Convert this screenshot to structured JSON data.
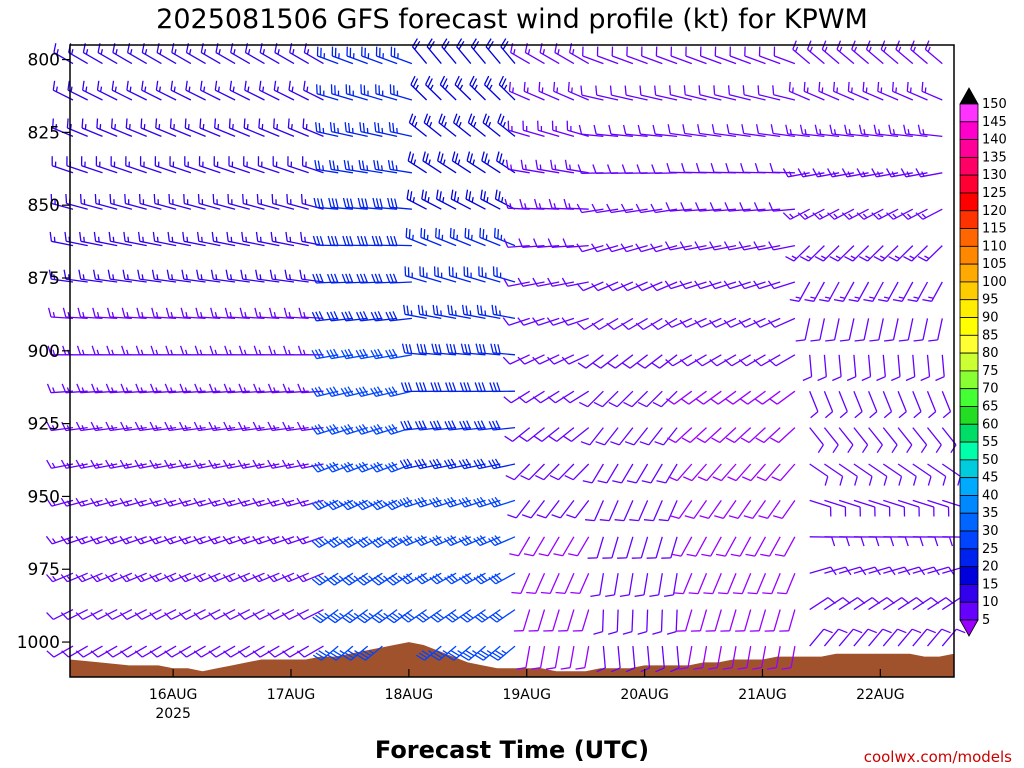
{
  "chart_data": {
    "type": "wind-barb time-height",
    "title": "2025081506 GFS forecast wind profile (kt) for KPWM",
    "xlabel": "Forecast Time (UTC)",
    "ylabel": "",
    "credit": "coolwx.com/models",
    "y_axis": {
      "units": "hPa",
      "range": [
        1012,
        795
      ],
      "ticks": [
        800,
        825,
        850,
        875,
        900,
        925,
        950,
        975,
        1000
      ]
    },
    "x_axis": {
      "range_hours": [
        -21,
        159
      ],
      "ticks": [
        {
          "label": "16AUG",
          "sublabel": "2025",
          "hour": 0
        },
        {
          "label": "17AUG",
          "hour": 24
        },
        {
          "label": "18AUG",
          "hour": 48
        },
        {
          "label": "19AUG",
          "hour": 72
        },
        {
          "label": "20AUG",
          "hour": 96
        },
        {
          "label": "21AUG",
          "hour": 120
        },
        {
          "label": "22AUG",
          "hour": 144
        }
      ]
    },
    "colorbar": {
      "label_values": [
        150,
        145,
        140,
        135,
        130,
        125,
        120,
        115,
        110,
        105,
        100,
        95,
        90,
        85,
        80,
        75,
        70,
        65,
        60,
        55,
        50,
        45,
        40,
        35,
        30,
        25,
        20,
        15,
        10,
        5
      ],
      "colors": [
        "#000000",
        "#ff33ff",
        "#ff00cc",
        "#ff0099",
        "#ff0066",
        "#ff0033",
        "#ff0000",
        "#ff3300",
        "#ff6600",
        "#ff8800",
        "#ffaa00",
        "#ffcc00",
        "#ffee00",
        "#ffff00",
        "#ffff33",
        "#ccff33",
        "#88ff33",
        "#44ff33",
        "#22dd22",
        "#00dd66",
        "#00ffaa",
        "#00ccdd",
        "#00aaff",
        "#0088ff",
        "#0066ff",
        "#0044ff",
        "#0022ee",
        "#0000dd",
        "#3300ee",
        "#6600ff",
        "#9900ff"
      ]
    },
    "surface_pressure": {
      "hours": [
        -21,
        -15,
        -9,
        -3,
        0,
        3,
        6,
        9,
        12,
        15,
        18,
        21,
        24,
        27,
        30,
        33,
        36,
        39,
        42,
        45,
        48,
        51,
        54,
        57,
        60,
        63,
        66,
        69,
        72,
        75,
        78,
        81,
        84,
        87,
        90,
        93,
        96,
        99,
        102,
        105,
        108,
        111,
        114,
        117,
        120,
        123,
        126,
        129,
        132,
        135,
        138,
        141,
        144,
        147,
        150,
        153,
        156,
        159
      ],
      "values": [
        1006,
        1007,
        1008,
        1008,
        1009,
        1009,
        1010,
        1009,
        1008,
        1007,
        1006,
        1006,
        1006,
        1006,
        1005,
        1005,
        1004,
        1003,
        1002,
        1001,
        1000,
        1001,
        1003,
        1005,
        1007,
        1008,
        1009,
        1009,
        1009,
        1009,
        1010,
        1010,
        1010,
        1009,
        1009,
        1009,
        1008,
        1008,
        1008,
        1008,
        1007,
        1007,
        1006,
        1006,
        1006,
        1005,
        1005,
        1005,
        1005,
        1004,
        1004,
        1004,
        1004,
        1004,
        1004,
        1005,
        1005,
        1004
      ]
    },
    "wind_barbs": {
      "units": "kt",
      "direction_convention": "meteorological, degrees from which wind blows",
      "levels": [
        800,
        812.5,
        825,
        837.5,
        850,
        862.5,
        875,
        887.5,
        900,
        912.5,
        925,
        937.5,
        950,
        962.5,
        975,
        987.5,
        1000
      ],
      "segments": [
        {
          "hours": [
            -21,
            30
          ],
          "dir_top": 300,
          "dir_bottom": 240,
          "spd_top": 17,
          "spd_bottom": 12
        },
        {
          "hours": [
            33,
            48
          ],
          "dir_top": 290,
          "dir_bottom": 230,
          "spd_top": 25,
          "spd_bottom": 35
        },
        {
          "hours": [
            51,
            69
          ],
          "dir_top": 320,
          "dir_bottom": 230,
          "spd_top": 22,
          "spd_bottom": 33
        },
        {
          "hours": [
            72,
            84
          ],
          "dir_top": 300,
          "dir_bottom": 190,
          "spd_top": 14,
          "spd_bottom": 9
        },
        {
          "hours": [
            87,
            102
          ],
          "dir_top": 290,
          "dir_bottom": 175,
          "spd_top": 11,
          "spd_bottom": 12
        },
        {
          "hours": [
            105,
            126
          ],
          "dir_top": 290,
          "dir_bottom": 190,
          "spd_top": 11,
          "spd_bottom": 9
        },
        {
          "hours": [
            129,
            159
          ],
          "dir_top": 310,
          "dir_bottom": 40,
          "spd_top": 14,
          "spd_bottom": 10
        }
      ]
    }
  }
}
